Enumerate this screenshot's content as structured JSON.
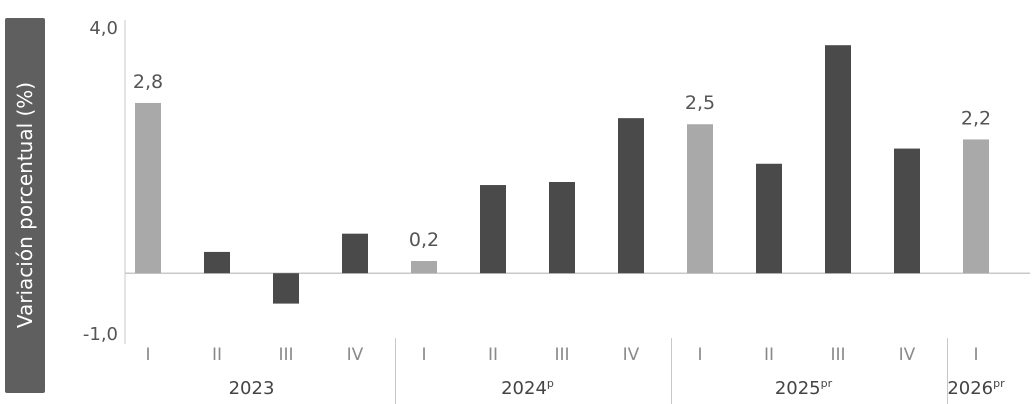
{
  "chart_data": {
    "type": "bar",
    "ylabel": "Variación porcentual (%)",
    "ylim": [
      -1.0,
      4.0
    ],
    "ytick_labels": [
      "4,0",
      "-1,0"
    ],
    "grid": false,
    "legend": "none",
    "categories": [
      "I",
      "II",
      "III",
      "IV",
      "I",
      "II",
      "III",
      "IV",
      "I",
      "II",
      "III",
      "IV",
      "I"
    ],
    "values": [
      2.8,
      0.35,
      -0.5,
      0.65,
      0.2,
      1.45,
      1.5,
      2.55,
      2.45,
      1.8,
      3.75,
      2.05,
      2.2
    ],
    "year_groups": [
      {
        "label": "2023",
        "sup": "",
        "start": 0,
        "end": 3
      },
      {
        "label": "2024",
        "sup": "p",
        "start": 4,
        "end": 7
      },
      {
        "label": "2025",
        "sup": "pr",
        "start": 8,
        "end": 11
      },
      {
        "label": "2026",
        "sup": "pr",
        "start": 12,
        "end": 12
      }
    ],
    "bar_tones": [
      "light",
      "dark",
      "dark",
      "dark",
      "light",
      "dark",
      "dark",
      "dark",
      "light",
      "dark",
      "dark",
      "dark",
      "light"
    ],
    "data_labels": [
      "2,8",
      "",
      "",
      "",
      "0,2",
      "",
      "",
      "",
      "2,5",
      "",
      "",
      "",
      "2,2"
    ],
    "colors": {
      "light": "#a9a9a9",
      "dark": "#4a4a4a",
      "axis": "#c8c8c8",
      "text": "#555555"
    }
  }
}
